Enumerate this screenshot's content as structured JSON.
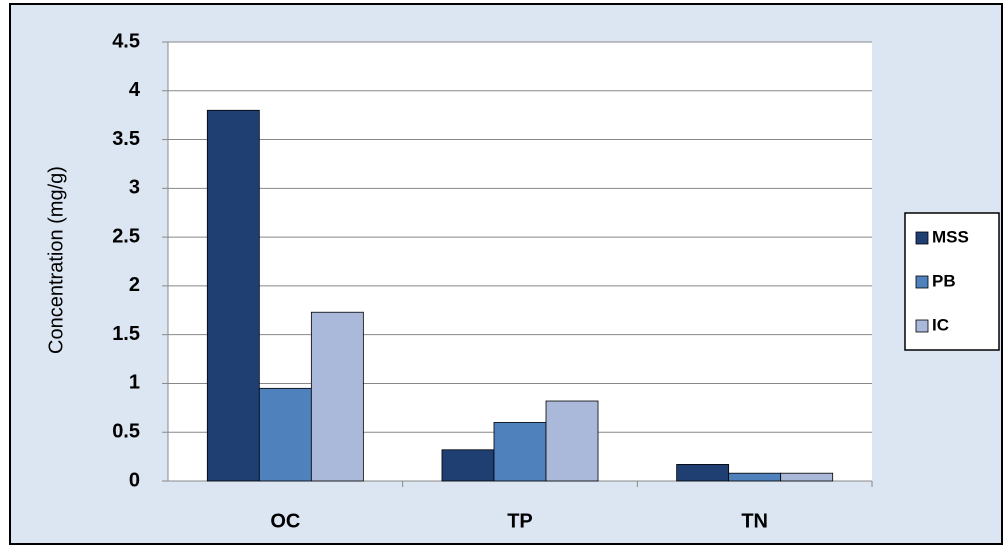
{
  "chart_data": {
    "type": "bar",
    "y_label": "Concentration (mg/g)",
    "categories": [
      "OC",
      "TP",
      "TN"
    ],
    "series": [
      {
        "name": "MSS",
        "color": "#1f3f73",
        "values": [
          3.8,
          0.32,
          0.17
        ]
      },
      {
        "name": "PB",
        "color": "#4f81bd",
        "values": [
          0.95,
          0.6,
          0.08
        ]
      },
      {
        "name": "IC",
        "color": "#aab9d9",
        "values": [
          1.73,
          0.82,
          0.08
        ]
      }
    ],
    "ylim": [
      0,
      4.5
    ],
    "yticks": [
      0,
      0.5,
      1,
      1.5,
      2,
      2.5,
      3,
      3.5,
      4,
      4.5
    ],
    "grid": true,
    "legend": "right"
  }
}
